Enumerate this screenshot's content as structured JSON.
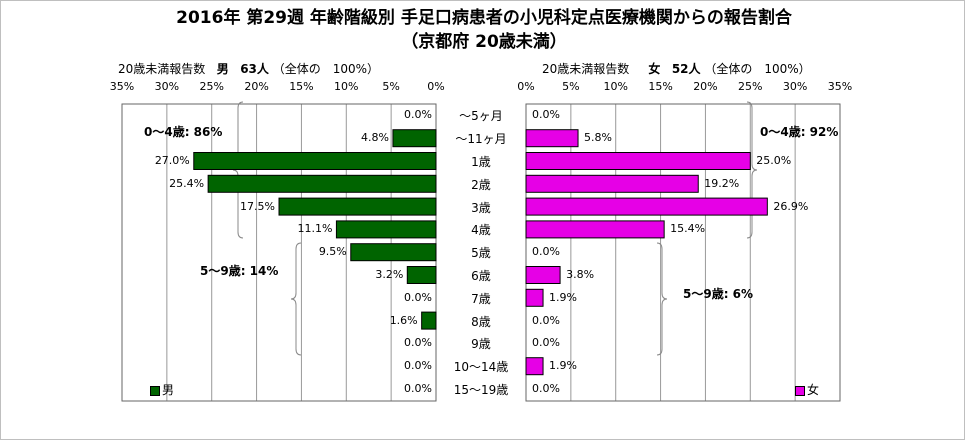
{
  "title_line1": "2016年 第29週 年齢階級別 手足口病患者の小児科定点医療機関からの報告割合",
  "title_line2": "（京都府 20歳未満）",
  "colors": {
    "male": "#006400",
    "female": "#e600e6",
    "grid": "#999999"
  },
  "chart_data": {
    "type": "bar",
    "orientation": "horizontal",
    "layout": "population-pyramid",
    "categories": [
      "～5ヶ月",
      "～11ヶ月",
      "1歳",
      "2歳",
      "3歳",
      "4歳",
      "5歳",
      "6歳",
      "7歳",
      "8歳",
      "9歳",
      "10～14歳",
      "15～19歳"
    ],
    "series": [
      {
        "name": "男",
        "values": [
          0.0,
          4.8,
          27.0,
          25.4,
          17.5,
          11.1,
          9.5,
          3.2,
          0.0,
          1.6,
          0.0,
          0.0,
          0.0
        ]
      },
      {
        "name": "女",
        "values": [
          0.0,
          5.8,
          25.0,
          19.2,
          26.9,
          15.4,
          0.0,
          3.8,
          1.9,
          0.0,
          0.0,
          1.9,
          0.0
        ]
      }
    ],
    "xlim": [
      0,
      35
    ],
    "xticks": [
      "35%",
      "30%",
      "25%",
      "20%",
      "15%",
      "10%",
      "5%",
      "0%"
    ],
    "xticks_right": [
      "0%",
      "5%",
      "10%",
      "15%",
      "20%",
      "25%",
      "30%",
      "35%"
    ],
    "value_format": "%",
    "grid": true,
    "legend_left": "男",
    "legend_right": "女",
    "header_left": {
      "label": "20歳未満報告数",
      "sex": "男",
      "count": "63人",
      "note": "（全体の　100%）"
    },
    "header_right": {
      "label": "20歳未満報告数",
      "sex": "女",
      "count": "52人",
      "note": "（全体の　100%）"
    },
    "annotations": {
      "male_0_4": "0～4歳: 86%",
      "male_5_9": "5～9歳: 14%",
      "female_0_4": "0～4歳: 92%",
      "female_5_9": "5～9歳: 6%"
    }
  }
}
